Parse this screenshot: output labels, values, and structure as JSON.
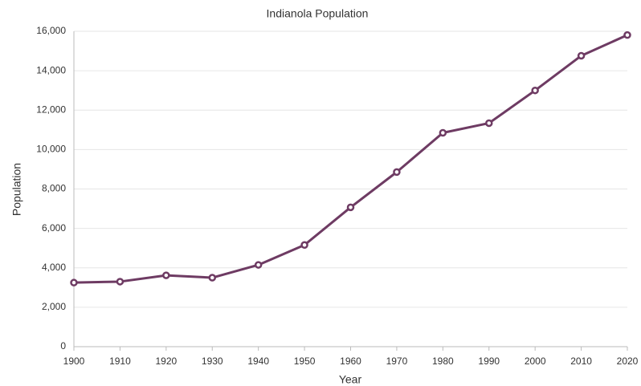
{
  "chart_data": {
    "type": "line",
    "title": "Indianola Population",
    "x_label": "Year",
    "y_label": "Population",
    "x": [
      1900,
      1910,
      1920,
      1930,
      1940,
      1950,
      1960,
      1970,
      1980,
      1990,
      2000,
      2010,
      2020
    ],
    "series": [
      {
        "name": "Population",
        "color": "#6e3b63",
        "values": [
          3250,
          3300,
          3620,
          3500,
          4150,
          5160,
          7070,
          8860,
          10850,
          11340,
          13000,
          14760,
          15810
        ]
      }
    ],
    "xlim": [
      1900,
      2020
    ],
    "xticks": [
      1900,
      1910,
      1920,
      1930,
      1940,
      1950,
      1960,
      1970,
      1980,
      1990,
      2000,
      2010,
      2020
    ],
    "ylim": [
      0,
      16000
    ],
    "yticks": [
      0,
      {
        "value": 2000,
        "label": "2,000"
      },
      {
        "value": 4000,
        "label": "4,000"
      },
      {
        "value": 6000,
        "label": "6,000"
      },
      {
        "value": 8000,
        "label": "8,000"
      },
      {
        "value": 10000,
        "label": "10,000"
      },
      {
        "value": 12000,
        "label": "12,000"
      },
      {
        "value": 14000,
        "label": "14,000"
      },
      {
        "value": 16000,
        "label": "16,000"
      }
    ],
    "grid": true
  }
}
